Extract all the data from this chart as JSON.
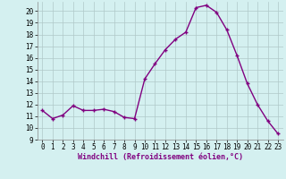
{
  "x": [
    0,
    1,
    2,
    3,
    4,
    5,
    6,
    7,
    8,
    9,
    10,
    11,
    12,
    13,
    14,
    15,
    16,
    17,
    18,
    19,
    20,
    21,
    22,
    23
  ],
  "y": [
    11.5,
    10.8,
    11.1,
    11.9,
    11.5,
    11.5,
    11.6,
    11.4,
    10.9,
    10.8,
    14.2,
    15.5,
    16.7,
    17.6,
    18.2,
    20.3,
    20.5,
    19.9,
    18.4,
    16.2,
    13.8,
    12.0,
    10.6,
    9.5
  ],
  "line_color": "#800080",
  "marker": "P",
  "marker_size": 2.5,
  "bg_color": "#d4f0f0",
  "grid_color": "#b0c8c8",
  "xlabel": "Windchill (Refroidissement éolien,°C)",
  "xlim_min": -0.5,
  "xlim_max": 23.5,
  "ylim_min": 9,
  "ylim_max": 20.8,
  "yticks": [
    9,
    10,
    11,
    12,
    13,
    14,
    15,
    16,
    17,
    18,
    19,
    20
  ],
  "xticks": [
    0,
    1,
    2,
    3,
    4,
    5,
    6,
    7,
    8,
    9,
    10,
    11,
    12,
    13,
    14,
    15,
    16,
    17,
    18,
    19,
    20,
    21,
    22,
    23
  ],
  "tick_fontsize": 5.5,
  "xlabel_fontsize": 6.0,
  "line_width": 1.0,
  "marker_edge_width": 1.0
}
